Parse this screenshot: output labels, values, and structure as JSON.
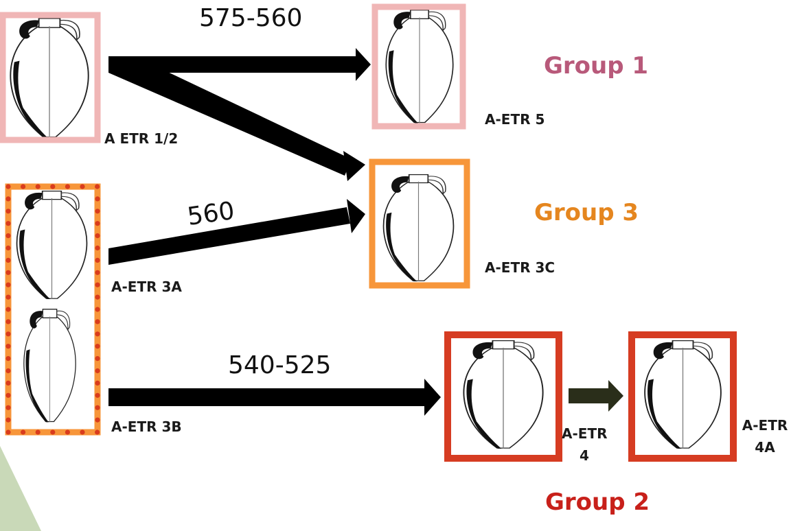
{
  "colors": {
    "pink_frame": "#f0b6b6",
    "orange_frame": "#f7963a",
    "orange_dots": "#d93c1e",
    "red_frame": "#d63c22",
    "group1": "#b8597a",
    "group2": "#c8201a",
    "group3": "#e5861f",
    "arrow_main": "#000000",
    "arrow_small": "#2a2e1a",
    "corner_shape": "#c9d9b8"
  },
  "dates": {
    "d1": "575-560",
    "d2": "560",
    "d3": "540-525"
  },
  "labels": {
    "etr12": "A ETR 1/2",
    "etr5": "A-ETR 5",
    "etr3a": "A-ETR 3A",
    "etr3c": "A-ETR 3C",
    "etr3b": "A-ETR 3B",
    "etr4_line1": "A-ETR",
    "etr4_line2": "4",
    "etr4a_line1": "A-ETR",
    "etr4a_line2": "4A"
  },
  "groups": {
    "g1": "Group 1",
    "g2": "Group 2",
    "g3": "Group 3"
  }
}
